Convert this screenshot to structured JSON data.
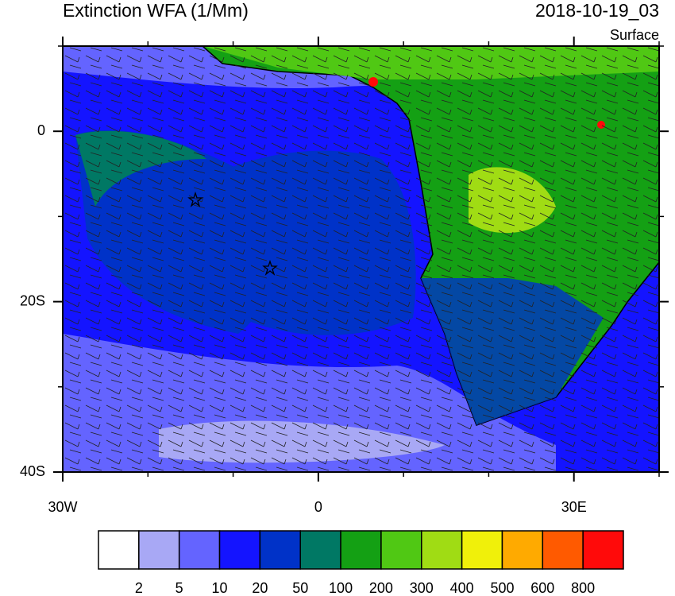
{
  "header": {
    "title": "Extinction WFA (1/Mm)",
    "time": "2018-10-19_03",
    "level": "Surface"
  },
  "map": {
    "xlim": [
      -30,
      40
    ],
    "ylim": [
      -40,
      10
    ],
    "xticks": [
      {
        "value": -30,
        "label": "30W"
      },
      0,
      {
        "value": 30,
        "label": "30E"
      }
    ],
    "xminor": [
      -20,
      -10,
      10,
      20,
      40
    ],
    "yticks": [
      0,
      {
        "value": -20,
        "label": "20S"
      },
      {
        "value": -40,
        "label": "40S"
      }
    ],
    "yminor": [
      10,
      -10,
      -30
    ]
  },
  "colorbar": {
    "colors": [
      "#ffffff",
      "#a8a8f5",
      "#6464ff",
      "#1414ff",
      "#0032c8",
      "#007864",
      "#14a014",
      "#50c814",
      "#a0dc14",
      "#f0f00a",
      "#ffaa00",
      "#ff5a00",
      "#ff0a0a"
    ],
    "labels": [
      2,
      5,
      10,
      20,
      50,
      100,
      200,
      300,
      400,
      500,
      600,
      800
    ]
  }
}
